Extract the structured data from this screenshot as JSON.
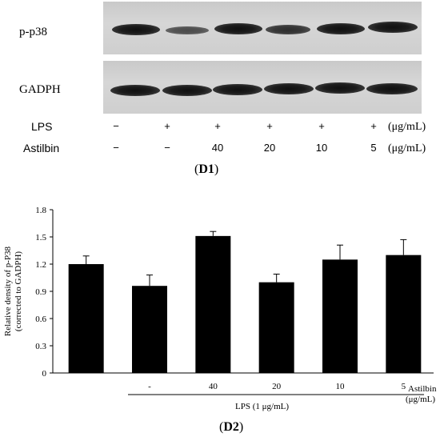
{
  "panel_d1": {
    "caption": "(D1)",
    "caption_letter": "D1",
    "rows": [
      {
        "label": "p-p38",
        "intensities": [
          0.95,
          0.55,
          1.0,
          0.75,
          0.9,
          1.0
        ]
      },
      {
        "label": "GADPH",
        "intensities": [
          1.0,
          0.95,
          1.0,
          0.95,
          1.0,
          0.95
        ]
      }
    ],
    "treatments": {
      "lps_label": "LPS",
      "lps_values": [
        "−",
        "+",
        "+",
        "+",
        "+",
        "+"
      ],
      "lps_unit": "(μg/mL)",
      "astilbin_label": "Astilbin",
      "astilbin_values": [
        "−",
        "−",
        "40",
        "20",
        "10",
        "5"
      ],
      "astilbin_unit": "(μg/mL)"
    }
  },
  "panel_d2": {
    "caption": "(D2)",
    "caption_letter": "D2",
    "x_group_label": "LPS (1 μg/mL)",
    "x_row_label_line1": "Astilbin",
    "x_row_label_line2": "(μg/mL)"
  },
  "chart_data": {
    "type": "bar",
    "categories": [
      "",
      "-",
      "40",
      "20",
      "10",
      "5"
    ],
    "values": [
      1.2,
      0.96,
      1.51,
      1.0,
      1.25,
      1.3
    ],
    "errors": [
      0.09,
      0.12,
      0.05,
      0.09,
      0.16,
      0.17
    ],
    "ylabel": "Relative density of p-P38 (corrected to GADPH)",
    "ylabel_line1": "Relative density of p-P38",
    "ylabel_line2": "(corrected to GADPH)",
    "ylim": [
      0,
      1.8
    ],
    "yticks": [
      "0",
      "0.3",
      "0.6",
      "0.9",
      "1.2",
      "1.5",
      "1.8"
    ],
    "bar_color": "#000000",
    "grid": false
  }
}
